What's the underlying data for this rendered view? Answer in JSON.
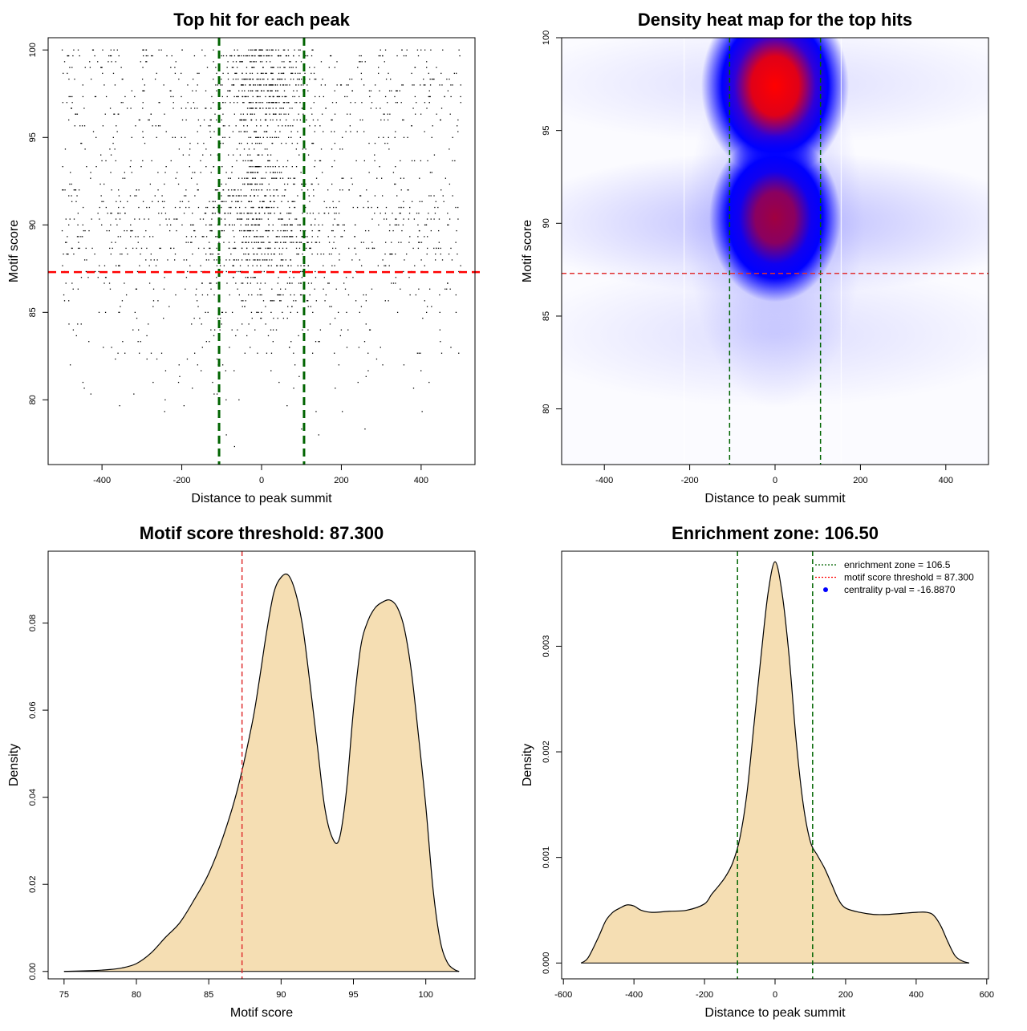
{
  "chart_data": [
    {
      "type": "scatter",
      "title": "Top hit for each peak",
      "xlabel": "Distance to peak summit",
      "ylabel": "Motif score",
      "xlim": [
        -535,
        535
      ],
      "ylim": [
        76.3,
        100.7
      ],
      "xticks": [
        -400,
        -200,
        0,
        200,
        400
      ],
      "yticks": [
        80,
        85,
        90,
        95,
        100
      ],
      "vlines": [
        -106.5,
        106.5
      ],
      "hline": 87.3,
      "point_clusters": [
        {
          "x_center": 0,
          "x_spread": 55,
          "y_center": 97.8,
          "y_spread": 1.6,
          "count": 420
        },
        {
          "x_center": 0,
          "x_spread": 70,
          "y_center": 91,
          "y_spread": 1.8,
          "count": 440
        },
        {
          "x_center": 0,
          "x_spread": 75,
          "y_center": 86.5,
          "y_spread": 2.2,
          "count": 160
        },
        {
          "x_center": 0,
          "x_spread": 500,
          "y_center": 90,
          "y_spread": 2.2,
          "count": 760
        },
        {
          "x_center": 0,
          "x_spread": 500,
          "y_center": 97.5,
          "y_spread": 2.0,
          "count": 520
        },
        {
          "x_center": 0,
          "x_spread": 500,
          "y_center": 84,
          "y_spread": 2.8,
          "count": 200
        }
      ]
    },
    {
      "type": "heatmap",
      "title": "Density heat map for the top hits",
      "xlabel": "Distance to peak summit",
      "ylabel": "Motif score",
      "xlim": [
        -500,
        500
      ],
      "ylim": [
        77.0,
        100.0
      ],
      "xticks": [
        -400,
        -200,
        0,
        200,
        400
      ],
      "yticks": [
        80,
        85,
        90,
        95,
        100
      ],
      "vlines": [
        -106.5,
        106.5
      ],
      "hline": 87.3,
      "colors": [
        "#ffffff",
        "#0000ff",
        "#ff0000"
      ],
      "hotspots": [
        {
          "x": 0,
          "y": 97.4,
          "intensity": 1.0
        },
        {
          "x": 0,
          "y": 90.3,
          "intensity": 0.75
        }
      ]
    },
    {
      "type": "area",
      "title": "Motif score threshold: 87.300",
      "xlabel": "Motif score",
      "ylabel": "Density",
      "xlim": [
        73.9,
        103.4
      ],
      "ylim": [
        -0.0017,
        0.0965
      ],
      "xticks": [
        75,
        80,
        85,
        90,
        95,
        100
      ],
      "yticks": [
        0.0,
        0.02,
        0.04,
        0.06,
        0.08
      ],
      "ytick_labels": [
        "0.00",
        "0.02",
        "0.04",
        "0.06",
        "0.08"
      ],
      "vline": 87.3,
      "fill_color": "#f5deb3",
      "x": [
        75,
        77,
        78,
        79,
        80,
        81,
        82,
        83,
        84,
        85,
        86,
        87,
        88,
        88.5,
        89,
        89.5,
        90,
        90.5,
        91,
        91.5,
        92,
        92.5,
        93,
        93.5,
        94,
        94.5,
        95,
        95.5,
        96,
        96.5,
        97,
        97.5,
        98,
        98.5,
        99,
        99.5,
        100,
        100.5,
        101,
        101.5,
        102,
        102.3
      ],
      "y": [
        0.0,
        0.0002,
        0.0004,
        0.0008,
        0.0018,
        0.0042,
        0.0078,
        0.0112,
        0.0165,
        0.0225,
        0.031,
        0.042,
        0.057,
        0.067,
        0.078,
        0.087,
        0.0905,
        0.091,
        0.087,
        0.079,
        0.066,
        0.052,
        0.038,
        0.031,
        0.0302,
        0.041,
        0.06,
        0.0745,
        0.0805,
        0.0835,
        0.0848,
        0.0853,
        0.0838,
        0.079,
        0.069,
        0.054,
        0.038,
        0.019,
        0.007,
        0.002,
        0.0004,
        0.0
      ]
    },
    {
      "type": "area",
      "title": "Enrichment zone: 106.50",
      "xlabel": "Distance to peak summit",
      "ylabel": "Density",
      "xlim": [
        -605,
        605
      ],
      "ylim": [
        -0.00015,
        0.0039
      ],
      "xticks": [
        -600,
        -400,
        -200,
        0,
        200,
        400,
        600
      ],
      "yticks": [
        0.0,
        0.001,
        0.002,
        0.003
      ],
      "ytick_labels": [
        "0.000",
        "0.001",
        "0.002",
        "0.003"
      ],
      "vlines": [
        -106.5,
        106.5
      ],
      "fill_color": "#f5deb3",
      "legend": [
        {
          "label": "enrichment zone = 106.5",
          "color": "#006400",
          "symbol": "dotted-line"
        },
        {
          "label": "motif score threshold = 87.300",
          "color": "#ff0000",
          "symbol": "dotted-line"
        },
        {
          "label": "centrality p-val = -16.8870",
          "color": "#0000ff",
          "symbol": "dot"
        }
      ],
      "legend_position": "top-right",
      "x": [
        -550,
        -530,
        -500,
        -480,
        -460,
        -440,
        -420,
        -400,
        -380,
        -350,
        -300,
        -250,
        -200,
        -180,
        -160,
        -140,
        -120,
        -100,
        -80,
        -60,
        -40,
        -20,
        0,
        20,
        40,
        60,
        80,
        100,
        120,
        140,
        160,
        180,
        200,
        240,
        280,
        320,
        360,
        400,
        430,
        450,
        470,
        490,
        510,
        530,
        550
      ],
      "y": [
        0.0,
        5e-05,
        0.00025,
        0.0004,
        0.00048,
        0.00052,
        0.00055,
        0.00054,
        0.0005,
        0.00048,
        0.00049,
        0.0005,
        0.00056,
        0.00065,
        0.00073,
        0.00082,
        0.00095,
        0.00118,
        0.0016,
        0.00225,
        0.0029,
        0.0035,
        0.0038,
        0.0035,
        0.0029,
        0.0021,
        0.0015,
        0.00115,
        0.00102,
        0.0009,
        0.00075,
        0.0006,
        0.00052,
        0.00048,
        0.00046,
        0.00046,
        0.00047,
        0.00048,
        0.00048,
        0.00045,
        0.00035,
        0.0002,
        7e-05,
        2e-05,
        0.0
      ]
    }
  ]
}
